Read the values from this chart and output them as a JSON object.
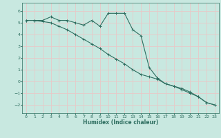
{
  "xlabel": "Humidex (Indice chaleur)",
  "ylabel": "",
  "bg_color": "#c8e8e0",
  "grid_color": "#e8c8c8",
  "line_color": "#2e6e60",
  "xlim": [
    -0.5,
    23.5
  ],
  "ylim": [
    -2.7,
    6.7
  ],
  "yticks": [
    -2,
    -1,
    0,
    1,
    2,
    3,
    4,
    5,
    6
  ],
  "xticks": [
    0,
    1,
    2,
    3,
    4,
    5,
    6,
    7,
    8,
    9,
    10,
    11,
    12,
    13,
    14,
    15,
    16,
    17,
    18,
    19,
    20,
    21,
    22,
    23
  ],
  "series1_x": [
    0,
    1,
    2,
    3,
    4,
    5,
    6,
    7,
    8,
    9,
    10,
    11,
    12,
    13,
    14,
    15,
    16,
    17,
    18,
    19,
    20,
    21,
    22,
    23
  ],
  "series1_y": [
    5.2,
    5.2,
    5.2,
    5.5,
    5.2,
    5.2,
    5.0,
    4.8,
    5.2,
    4.7,
    5.8,
    5.8,
    5.8,
    4.4,
    3.9,
    1.2,
    0.3,
    -0.2,
    -0.4,
    -0.6,
    -0.9,
    -1.3,
    -1.8,
    -2.0
  ],
  "series2_x": [
    0,
    1,
    2,
    3,
    4,
    5,
    6,
    7,
    8,
    9,
    10,
    11,
    12,
    13,
    14,
    15,
    16,
    17,
    18,
    19,
    20,
    21,
    22,
    23
  ],
  "series2_y": [
    5.2,
    5.2,
    5.1,
    5.0,
    4.7,
    4.4,
    4.0,
    3.6,
    3.2,
    2.8,
    2.3,
    1.9,
    1.5,
    1.0,
    0.6,
    0.4,
    0.2,
    -0.2,
    -0.4,
    -0.7,
    -1.0,
    -1.3,
    -1.8,
    -2.0
  ]
}
